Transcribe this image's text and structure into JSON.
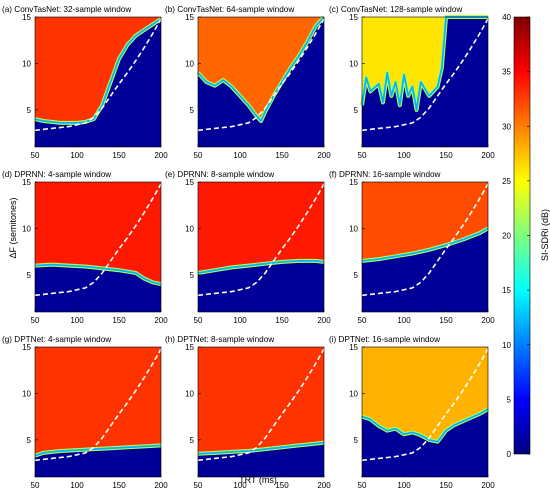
{
  "figure": {
    "xlabel": "TRT (ms)",
    "ylabel": "ΔF (semitones)",
    "colorbar_label": "SI-SDRi (dB)"
  },
  "colorbar": {
    "min": 0,
    "max": 40,
    "ticks": [
      0,
      5,
      10,
      15,
      20,
      25,
      30,
      35,
      40
    ],
    "colormap": "jet",
    "stops": [
      "#00007f",
      "#0000ff",
      "#007fff",
      "#00ffff",
      "#7fff7f",
      "#ffff00",
      "#ff7f00",
      "#ff0000",
      "#7f0000"
    ]
  },
  "chart_data": [
    {
      "type": "heatmap",
      "title": "(a) ConvTasNet: 32-sample window",
      "xlim": [
        50,
        200
      ],
      "ylim": [
        1,
        15
      ],
      "xticks": [
        50,
        100,
        150,
        200
      ],
      "yticks": [
        5,
        10,
        15
      ],
      "grid": false,
      "boundary": "lower-region",
      "region": [
        [
          50,
          4.0
        ],
        [
          60,
          3.8
        ],
        [
          70,
          3.7
        ],
        [
          80,
          3.6
        ],
        [
          90,
          3.6
        ],
        [
          100,
          3.6
        ],
        [
          110,
          3.7
        ],
        [
          120,
          4.0
        ],
        [
          130,
          5.5
        ],
        [
          140,
          8.0
        ],
        [
          150,
          10.5
        ],
        [
          160,
          12.0
        ],
        [
          170,
          13.0
        ],
        [
          180,
          13.6
        ],
        [
          190,
          14.2
        ],
        [
          200,
          14.8
        ]
      ],
      "high_value": 33,
      "low_value": 1,
      "threshold_curve": [
        [
          50,
          2.8
        ],
        [
          70,
          3.0
        ],
        [
          90,
          3.2
        ],
        [
          110,
          3.6
        ],
        [
          120,
          4.2
        ],
        [
          130,
          5.2
        ],
        [
          140,
          6.5
        ],
        [
          150,
          7.8
        ],
        [
          160,
          9.0
        ],
        [
          170,
          10.3
        ],
        [
          180,
          11.7
        ],
        [
          190,
          13.2
        ],
        [
          200,
          14.8
        ]
      ]
    },
    {
      "type": "heatmap",
      "title": "(b) ConvTasNet: 64-sample window",
      "xlim": [
        50,
        200
      ],
      "ylim": [
        1,
        15
      ],
      "xticks": [
        50,
        100,
        150,
        200
      ],
      "yticks": [
        5,
        10,
        15
      ],
      "grid": false,
      "boundary": "lower-region",
      "region": [
        [
          50,
          9.0
        ],
        [
          60,
          8.0
        ],
        [
          70,
          7.6
        ],
        [
          80,
          8.2
        ],
        [
          90,
          7.5
        ],
        [
          100,
          6.5
        ],
        [
          110,
          5.5
        ],
        [
          120,
          4.3
        ],
        [
          125,
          3.8
        ],
        [
          130,
          4.8
        ],
        [
          140,
          6.5
        ],
        [
          150,
          8.0
        ],
        [
          160,
          9.5
        ],
        [
          170,
          10.8
        ],
        [
          180,
          12.3
        ],
        [
          190,
          14.0
        ],
        [
          200,
          15.0
        ]
      ],
      "high_value": 31,
      "low_value": 1,
      "threshold_curve": [
        [
          50,
          2.8
        ],
        [
          70,
          3.0
        ],
        [
          90,
          3.2
        ],
        [
          110,
          3.6
        ],
        [
          120,
          4.2
        ],
        [
          130,
          5.2
        ],
        [
          140,
          6.5
        ],
        [
          150,
          7.8
        ],
        [
          160,
          9.0
        ],
        [
          170,
          10.3
        ],
        [
          180,
          11.7
        ],
        [
          190,
          13.2
        ],
        [
          200,
          14.8
        ]
      ]
    },
    {
      "type": "heatmap",
      "title": "(c) ConvTasNet: 128-sample window",
      "xlim": [
        50,
        200
      ],
      "ylim": [
        1,
        15
      ],
      "xticks": [
        50,
        100,
        150,
        200
      ],
      "yticks": [
        5,
        10,
        15
      ],
      "grid": false,
      "boundary": "lower-region",
      "region": [
        [
          50,
          5.5
        ],
        [
          55,
          8.5
        ],
        [
          60,
          7.0
        ],
        [
          70,
          7.8
        ],
        [
          75,
          5.8
        ],
        [
          80,
          9.0
        ],
        [
          85,
          6.5
        ],
        [
          90,
          8.0
        ],
        [
          95,
          5.5
        ],
        [
          100,
          8.8
        ],
        [
          105,
          6.5
        ],
        [
          110,
          7.5
        ],
        [
          115,
          5.0
        ],
        [
          120,
          8.0
        ],
        [
          130,
          6.5
        ],
        [
          140,
          7.5
        ],
        [
          145,
          9.5
        ],
        [
          150,
          15.0
        ],
        [
          200,
          15.0
        ]
      ],
      "high_value": 26,
      "low_value": 1,
      "threshold_curve": [
        [
          50,
          2.8
        ],
        [
          70,
          3.0
        ],
        [
          90,
          3.2
        ],
        [
          110,
          3.6
        ],
        [
          120,
          4.2
        ],
        [
          130,
          5.2
        ],
        [
          140,
          6.5
        ],
        [
          150,
          7.8
        ],
        [
          160,
          9.0
        ],
        [
          170,
          10.3
        ],
        [
          180,
          11.7
        ],
        [
          190,
          13.2
        ],
        [
          200,
          14.8
        ]
      ]
    },
    {
      "type": "heatmap",
      "title": "(d) DPRNN: 4-sample window",
      "xlim": [
        50,
        200
      ],
      "ylim": [
        1,
        15
      ],
      "xticks": [
        50,
        100,
        150,
        200
      ],
      "yticks": [
        5,
        10,
        15
      ],
      "grid": false,
      "boundary": "lower-region",
      "region": [
        [
          50,
          6.0
        ],
        [
          70,
          6.1
        ],
        [
          90,
          6.0
        ],
        [
          110,
          5.9
        ],
        [
          130,
          5.7
        ],
        [
          150,
          5.5
        ],
        [
          170,
          5.2
        ],
        [
          180,
          4.6
        ],
        [
          190,
          4.2
        ],
        [
          200,
          4.0
        ]
      ],
      "high_value": 34,
      "low_value": 1,
      "threshold_curve": [
        [
          50,
          2.8
        ],
        [
          70,
          3.0
        ],
        [
          90,
          3.2
        ],
        [
          110,
          3.6
        ],
        [
          120,
          4.2
        ],
        [
          130,
          5.2
        ],
        [
          140,
          6.5
        ],
        [
          150,
          7.8
        ],
        [
          160,
          9.0
        ],
        [
          170,
          10.3
        ],
        [
          180,
          11.7
        ],
        [
          190,
          13.2
        ],
        [
          200,
          14.8
        ]
      ]
    },
    {
      "type": "heatmap",
      "title": "(e) DPRNN: 8-sample window",
      "xlim": [
        50,
        200
      ],
      "ylim": [
        1,
        15
      ],
      "xticks": [
        50,
        100,
        150,
        200
      ],
      "yticks": [
        5,
        10,
        15
      ],
      "grid": false,
      "boundary": "lower-region",
      "region": [
        [
          50,
          5.2
        ],
        [
          70,
          5.5
        ],
        [
          90,
          5.8
        ],
        [
          110,
          6.0
        ],
        [
          130,
          6.2
        ],
        [
          150,
          6.4
        ],
        [
          170,
          6.5
        ],
        [
          190,
          6.5
        ],
        [
          200,
          6.4
        ]
      ],
      "high_value": 34,
      "low_value": 1,
      "threshold_curve": [
        [
          50,
          2.8
        ],
        [
          70,
          3.0
        ],
        [
          90,
          3.2
        ],
        [
          110,
          3.6
        ],
        [
          120,
          4.2
        ],
        [
          130,
          5.2
        ],
        [
          140,
          6.5
        ],
        [
          150,
          7.8
        ],
        [
          160,
          9.0
        ],
        [
          170,
          10.3
        ],
        [
          180,
          11.7
        ],
        [
          190,
          13.2
        ],
        [
          200,
          14.8
        ]
      ]
    },
    {
      "type": "heatmap",
      "title": "(f) DPRNN: 16-sample window",
      "xlim": [
        50,
        200
      ],
      "ylim": [
        1,
        15
      ],
      "xticks": [
        50,
        100,
        150,
        200
      ],
      "yticks": [
        5,
        10,
        15
      ],
      "grid": false,
      "boundary": "lower-region",
      "region": [
        [
          50,
          6.5
        ],
        [
          70,
          6.7
        ],
        [
          90,
          7.0
        ],
        [
          110,
          7.3
        ],
        [
          130,
          7.7
        ],
        [
          150,
          8.2
        ],
        [
          170,
          8.8
        ],
        [
          190,
          9.5
        ],
        [
          200,
          10.0
        ]
      ],
      "high_value": 32,
      "low_value": 1,
      "threshold_curve": [
        [
          50,
          2.8
        ],
        [
          70,
          3.0
        ],
        [
          90,
          3.2
        ],
        [
          110,
          3.6
        ],
        [
          120,
          4.2
        ],
        [
          130,
          5.2
        ],
        [
          140,
          6.5
        ],
        [
          150,
          7.8
        ],
        [
          160,
          9.0
        ],
        [
          170,
          10.3
        ],
        [
          180,
          11.7
        ],
        [
          190,
          13.2
        ],
        [
          200,
          14.8
        ]
      ]
    },
    {
      "type": "heatmap",
      "title": "(g) DPTNet: 4-sample window",
      "xlim": [
        50,
        200
      ],
      "ylim": [
        1,
        15
      ],
      "xticks": [
        50,
        100,
        150,
        200
      ],
      "yticks": [
        5,
        10,
        15
      ],
      "grid": false,
      "boundary": "lower-region",
      "region": [
        [
          50,
          3.3
        ],
        [
          60,
          3.6
        ],
        [
          80,
          3.8
        ],
        [
          100,
          3.9
        ],
        [
          120,
          4.0
        ],
        [
          140,
          4.1
        ],
        [
          160,
          4.2
        ],
        [
          180,
          4.3
        ],
        [
          200,
          4.4
        ]
      ],
      "high_value": 33,
      "low_value": 1,
      "threshold_curve": [
        [
          50,
          2.8
        ],
        [
          70,
          3.0
        ],
        [
          90,
          3.2
        ],
        [
          110,
          3.6
        ],
        [
          120,
          4.2
        ],
        [
          130,
          5.2
        ],
        [
          140,
          6.5
        ],
        [
          150,
          7.8
        ],
        [
          160,
          9.0
        ],
        [
          170,
          10.3
        ],
        [
          180,
          11.7
        ],
        [
          190,
          13.2
        ],
        [
          200,
          14.8
        ]
      ]
    },
    {
      "type": "heatmap",
      "title": "(h) DPTNet: 8-sample window",
      "xlim": [
        50,
        200
      ],
      "ylim": [
        1,
        15
      ],
      "xticks": [
        50,
        100,
        150,
        200
      ],
      "yticks": [
        5,
        10,
        15
      ],
      "grid": false,
      "boundary": "lower-region",
      "region": [
        [
          50,
          3.5
        ],
        [
          70,
          3.6
        ],
        [
          90,
          3.7
        ],
        [
          110,
          3.8
        ],
        [
          130,
          4.0
        ],
        [
          150,
          4.2
        ],
        [
          170,
          4.4
        ],
        [
          190,
          4.6
        ],
        [
          200,
          4.7
        ]
      ],
      "high_value": 33,
      "low_value": 1,
      "threshold_curve": [
        [
          50,
          2.8
        ],
        [
          70,
          3.0
        ],
        [
          90,
          3.2
        ],
        [
          110,
          3.6
        ],
        [
          120,
          4.2
        ],
        [
          130,
          5.2
        ],
        [
          140,
          6.5
        ],
        [
          150,
          7.8
        ],
        [
          160,
          9.0
        ],
        [
          170,
          10.3
        ],
        [
          180,
          11.7
        ],
        [
          190,
          13.2
        ],
        [
          200,
          14.8
        ]
      ]
    },
    {
      "type": "heatmap",
      "title": "(i) DPTNet: 16-sample window",
      "xlim": [
        50,
        200
      ],
      "ylim": [
        1,
        15
      ],
      "xticks": [
        50,
        100,
        150,
        200
      ],
      "yticks": [
        5,
        10,
        15
      ],
      "grid": false,
      "boundary": "lower-region",
      "region": [
        [
          50,
          7.5
        ],
        [
          60,
          7.2
        ],
        [
          70,
          6.5
        ],
        [
          80,
          6.0
        ],
        [
          90,
          6.2
        ],
        [
          100,
          5.6
        ],
        [
          110,
          5.8
        ],
        [
          120,
          5.5
        ],
        [
          130,
          5.0
        ],
        [
          140,
          4.8
        ],
        [
          150,
          6.0
        ],
        [
          160,
          6.6
        ],
        [
          170,
          7.0
        ],
        [
          180,
          7.4
        ],
        [
          190,
          7.8
        ],
        [
          200,
          8.3
        ]
      ],
      "high_value": 28,
      "low_value": 1,
      "threshold_curve": [
        [
          50,
          2.8
        ],
        [
          70,
          3.0
        ],
        [
          90,
          3.2
        ],
        [
          110,
          3.6
        ],
        [
          120,
          4.2
        ],
        [
          130,
          5.2
        ],
        [
          140,
          6.5
        ],
        [
          150,
          7.8
        ],
        [
          160,
          9.0
        ],
        [
          170,
          10.3
        ],
        [
          180,
          11.7
        ],
        [
          190,
          13.2
        ],
        [
          200,
          14.8
        ]
      ]
    }
  ]
}
